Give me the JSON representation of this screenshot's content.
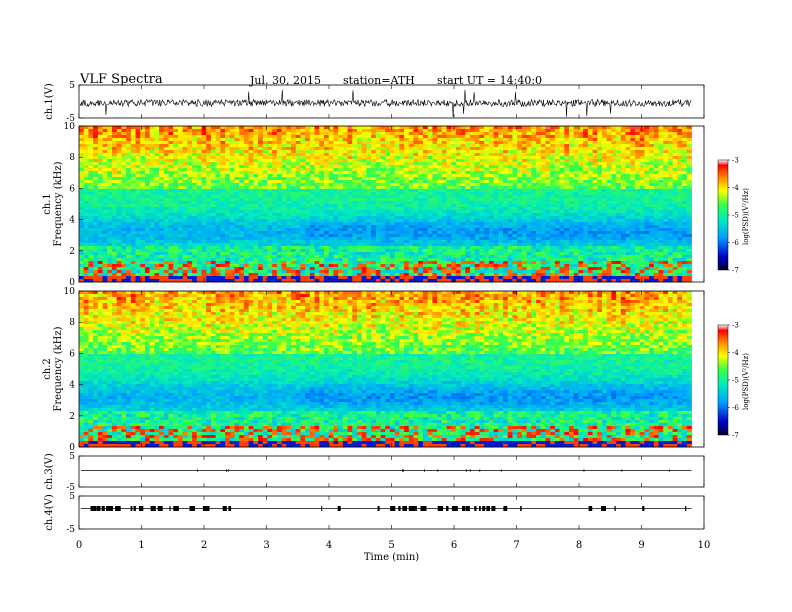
{
  "header": {
    "title": "VLF  Spectra",
    "date": "Jul.  30,  2015",
    "station": "station=ATH",
    "start": "start  UT  =    14:40:0"
  },
  "chart_data": [
    {
      "type": "line",
      "panel": "ch1-waveform",
      "ylabel": "ch.1(V)",
      "ylim": [
        -5,
        5
      ],
      "yticks": [
        "5",
        "-5"
      ],
      "xlim": [
        0,
        10
      ],
      "series": [
        {
          "approx_level": 0,
          "approx_amplitude": 1.5
        }
      ]
    },
    {
      "type": "heatmap",
      "panel": "ch1-spectrogram",
      "ylabel": "ch.1\nFrequency (kHz)",
      "ylabel_lines": [
        "ch.1",
        "Frequency  (kHz)"
      ],
      "ylim": [
        0,
        10
      ],
      "yticks": [
        "0",
        "2",
        "4",
        "6",
        "8",
        "10"
      ],
      "xlim": [
        0,
        10
      ],
      "data_end_min": 9.8,
      "colorbar": {
        "label": "log(PSD) (V²/Hz)",
        "label_text": "log(PSD)(V²/Hz)",
        "range": [
          -7,
          -3
        ],
        "ticks": [
          "-3",
          "-4",
          "-5",
          "-6",
          "-7"
        ]
      }
    },
    {
      "type": "heatmap",
      "panel": "ch2-spectrogram",
      "ylabel_lines": [
        "ch.2",
        "Frequency  (kHz)"
      ],
      "ylim": [
        0,
        10
      ],
      "yticks": [
        "0",
        "2",
        "4",
        "6",
        "8",
        "10"
      ],
      "xlim": [
        0,
        10
      ],
      "data_end_min": 9.8,
      "colorbar": {
        "label_text": "log(PSD)(V²/Hz)",
        "range": [
          -7,
          -3
        ],
        "ticks": [
          "-3",
          "-4",
          "-5",
          "-6",
          "-7"
        ]
      }
    },
    {
      "type": "line",
      "panel": "ch3-waveform",
      "ylabel": "ch.3(V)",
      "ylim": [
        -5,
        5
      ],
      "yticks": [
        "5",
        "-5"
      ],
      "xlim": [
        0,
        10
      ]
    },
    {
      "type": "line",
      "panel": "ch4-waveform",
      "ylabel": "ch.4(V)",
      "ylim": [
        -5,
        5
      ],
      "yticks": [
        "5",
        "-5"
      ],
      "xlim": [
        0,
        10
      ],
      "xlabel": "Time  (min)",
      "xticks": [
        "0",
        "1",
        "2",
        "3",
        "4",
        "5",
        "6",
        "7",
        "8",
        "9",
        "10"
      ]
    }
  ]
}
